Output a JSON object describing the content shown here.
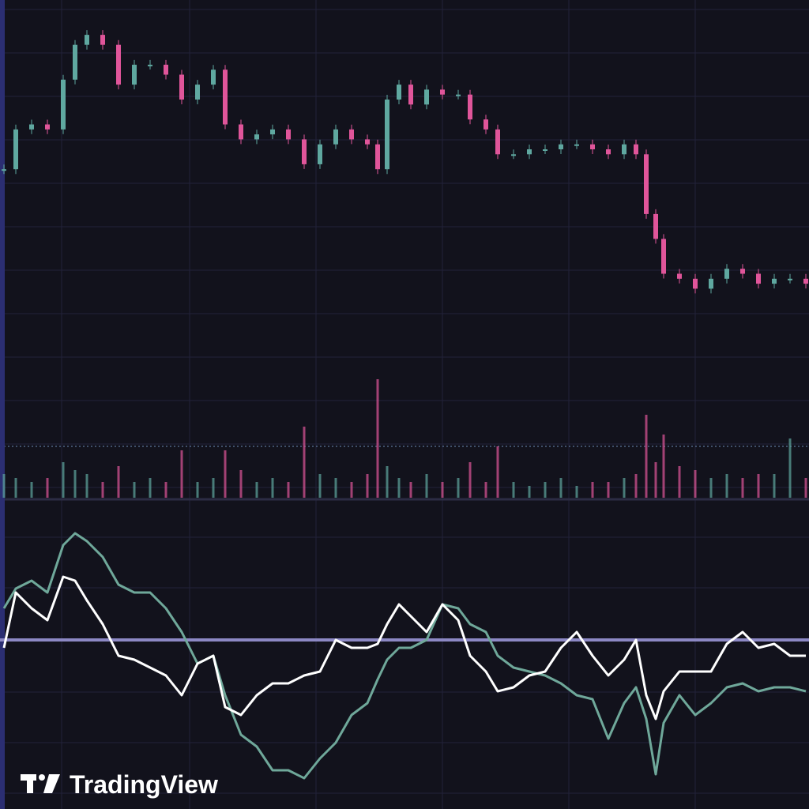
{
  "chart_data": [
    {
      "type": "candlestick",
      "x": [
        5,
        20,
        40,
        60,
        80,
        95,
        110,
        130,
        150,
        170,
        190,
        210,
        230,
        250,
        270,
        285,
        305,
        325,
        345,
        365,
        385,
        405,
        425,
        445,
        465,
        478,
        490,
        505,
        520,
        540,
        560,
        580,
        595,
        615,
        630,
        650,
        670,
        690,
        710,
        730,
        750,
        770,
        790,
        805,
        818,
        830,
        840,
        860,
        880,
        900,
        920,
        940,
        960,
        980,
        1000,
        1020
      ],
      "values": [
        66,
        74,
        75,
        74,
        84,
        91,
        93,
        91,
        83,
        87,
        87,
        85,
        80,
        83,
        86,
        75,
        72,
        73,
        74,
        72,
        67,
        71,
        74,
        72,
        71,
        66,
        80,
        83,
        79,
        82,
        81,
        81,
        76,
        74,
        69,
        69,
        70,
        70,
        71,
        71,
        70,
        69,
        71,
        69,
        57,
        52,
        45,
        44,
        42,
        44,
        46,
        45,
        43,
        44,
        44,
        43
      ],
      "up_color": "#5fa8a0",
      "down_color": "#e0559a",
      "xlim": [
        0,
        1024
      ],
      "ylim": [
        0,
        100
      ]
    },
    {
      "type": "bar",
      "x": [
        5,
        20,
        40,
        60,
        80,
        95,
        110,
        130,
        150,
        170,
        190,
        210,
        230,
        250,
        270,
        285,
        305,
        325,
        345,
        365,
        385,
        405,
        425,
        445,
        465,
        478,
        490,
        505,
        520,
        540,
        560,
        580,
        595,
        615,
        630,
        650,
        670,
        690,
        710,
        730,
        750,
        770,
        790,
        805,
        818,
        830,
        840,
        860,
        880,
        900,
        920,
        940,
        960,
        980,
        1000,
        1020
      ],
      "values": [
        30,
        25,
        20,
        25,
        45,
        35,
        30,
        20,
        40,
        20,
        25,
        20,
        60,
        20,
        25,
        60,
        35,
        20,
        25,
        20,
        90,
        30,
        25,
        20,
        30,
        150,
        40,
        25,
        20,
        30,
        20,
        25,
        45,
        20,
        65,
        20,
        15,
        20,
        25,
        15,
        20,
        20,
        25,
        30,
        105,
        45,
        80,
        40,
        35,
        25,
        30,
        25,
        30,
        30,
        75,
        25
      ],
      "xlim": [
        0,
        1024
      ],
      "ylim": [
        0,
        630
      ]
    },
    {
      "type": "line",
      "x": [
        5,
        20,
        40,
        60,
        80,
        95,
        110,
        130,
        150,
        170,
        190,
        210,
        230,
        250,
        270,
        285,
        305,
        325,
        345,
        365,
        385,
        405,
        425,
        445,
        465,
        478,
        490,
        505,
        520,
        540,
        560,
        580,
        595,
        615,
        630,
        650,
        670,
        690,
        710,
        730,
        750,
        770,
        790,
        805,
        818,
        830,
        840,
        860,
        880,
        900,
        920,
        940,
        960,
        980,
        1000,
        1020
      ],
      "series": [
        {
          "color": "#6fa89a",
          "values": [
            40,
            65,
            75,
            60,
            120,
            135,
            125,
            105,
            70,
            60,
            60,
            40,
            10,
            -30,
            -20,
            -70,
            -120,
            -135,
            -165,
            -165,
            -175,
            -150,
            -130,
            -95,
            -80,
            -50,
            -25,
            -10,
            -10,
            0,
            45,
            40,
            20,
            10,
            -20,
            -35,
            -40,
            -45,
            -55,
            -70,
            -75,
            -125,
            -80,
            -60,
            -100,
            -170,
            -105,
            -70,
            -95,
            -80,
            -60,
            -55,
            -65,
            -60,
            -60,
            -65
          ]
        },
        {
          "color": "#ffffff",
          "values": [
            -10,
            60,
            40,
            25,
            80,
            75,
            50,
            20,
            -20,
            -25,
            -35,
            -45,
            -70,
            -30,
            -20,
            -85,
            -95,
            -70,
            -55,
            -55,
            -45,
            -40,
            0,
            -10,
            -10,
            -5,
            20,
            45,
            30,
            10,
            45,
            25,
            -20,
            -40,
            -65,
            -60,
            -45,
            -40,
            -10,
            10,
            -20,
            -45,
            -25,
            0,
            -70,
            -100,
            -65,
            -40,
            -40,
            -40,
            -5,
            10,
            -10,
            -5,
            -20,
            -20
          ]
        }
      ],
      "xlim": [
        0,
        1024
      ],
      "ylim": [
        -214,
        175
      ]
    }
  ],
  "logo": {
    "text": "TradingView"
  }
}
